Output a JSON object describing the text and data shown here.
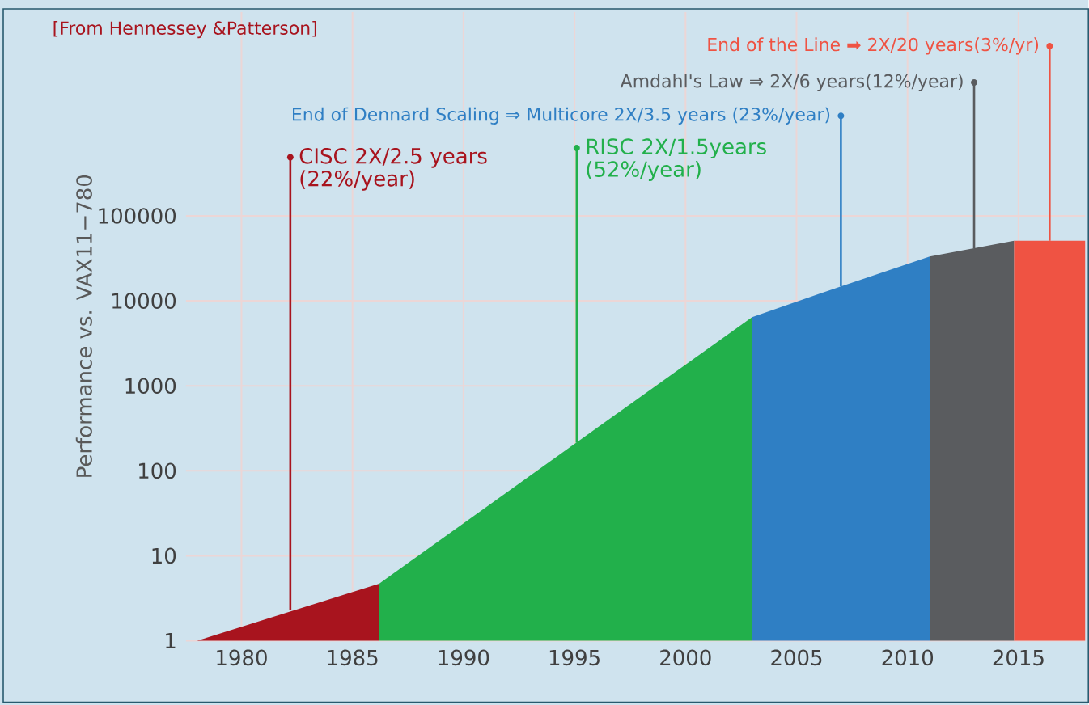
{
  "chart_data": {
    "type": "area",
    "ylabel": "Performance vs. VAX11−780",
    "series": [
      {
        "color": "#a8141e",
        "x": [
          1978,
          1986.2
        ],
        "values": [
          1,
          4.7
        ]
      },
      {
        "color": "#22b04b",
        "x": [
          1986.2,
          2003
        ],
        "values": [
          4.7,
          6450
        ]
      },
      {
        "color": "#2f7fc4",
        "x": [
          2003,
          2007,
          2011
        ],
        "values": [
          6450,
          14800,
          33200
        ]
      },
      {
        "color": "#5a5c5f",
        "x": [
          2011,
          2014.8
        ],
        "values": [
          33200,
          51000
        ]
      },
      {
        "color": "#ef5343",
        "x": [
          2014.8,
          2018
        ],
        "values": [
          51000,
          51000
        ]
      }
    ],
    "annotations": [
      "[From Hennessey &Patterson]",
      {
        "text": "CISC 2X/2.5 years (22%/year)",
        "x": 1982.2,
        "y": 2.3
      },
      {
        "text": "RISC 2X/1.5years (52%/year)",
        "x": 1995.1,
        "y": 215
      },
      {
        "text": "End of Dennard Scaling ⇒ Multicore 2X/3.5 years (23%/year)",
        "x": 2007,
        "y": 14800
      },
      {
        "text": "Amdahl's Law ⇒ 2X/6 years(12%/year)",
        "x": 2013,
        "y": 41600
      },
      {
        "text": "End of the Line ➡ 2X/20 years(3%/yr)",
        "x": 2016.4,
        "y": 51000
      }
    ],
    "log": "y",
    "xlim": [
      1977.5,
      2018
    ],
    "ylim": [
      1,
      25000000
    ],
    "xticks": [
      1980,
      1985,
      1990,
      1995,
      2000,
      2005,
      2010,
      2015
    ],
    "yticks": [
      1,
      10,
      100,
      1000,
      10000,
      100000
    ],
    "grid": true
  }
}
